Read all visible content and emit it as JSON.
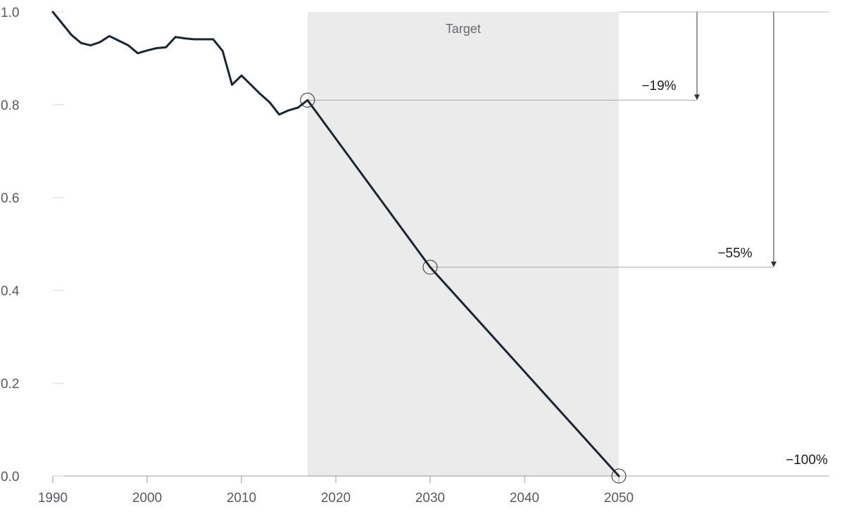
{
  "chart_data": {
    "type": "line",
    "xlim": [
      1990,
      2050
    ],
    "ylim": [
      0,
      1
    ],
    "x_ticks": [
      "1990",
      "2000",
      "2010",
      "2020",
      "2030",
      "2040",
      "2050"
    ],
    "y_ticks": [
      "0.0",
      "0.2",
      "0.4",
      "0.6",
      "0.8",
      "1.0"
    ],
    "grid": false,
    "series": [
      {
        "x": [
          1990,
          1991,
          1992,
          1993,
          1994,
          1995,
          1996,
          1997,
          1998,
          1999,
          2000,
          2001,
          2002,
          2003,
          2004,
          2005,
          2006,
          2007,
          2008,
          2009,
          2010,
          2011,
          2012,
          2013,
          2014,
          2015,
          2016,
          2017,
          2030,
          2050
        ],
        "y": [
          1.0,
          0.975,
          0.95,
          0.933,
          0.928,
          0.935,
          0.948,
          0.938,
          0.928,
          0.911,
          0.917,
          0.922,
          0.924,
          0.946,
          0.943,
          0.941,
          0.941,
          0.941,
          0.916,
          0.843,
          0.863,
          0.843,
          0.823,
          0.805,
          0.779,
          0.788,
          0.794,
          0.81,
          0.45,
          0.0
        ],
        "color": "#1b2533"
      }
    ],
    "target_band": {
      "label": "Target",
      "x_start": 2017,
      "x_end": 2050,
      "color": "#ebebeb"
    },
    "markers": [
      {
        "x": 2017,
        "y": 0.81
      },
      {
        "x": 2030,
        "y": 0.45
      },
      {
        "x": 2050,
        "y": 0.0
      }
    ],
    "annotations": [
      {
        "label": "−19%",
        "from_y": 1.0,
        "to_y": 0.81,
        "at_x": 2017
      },
      {
        "label": "−55%",
        "from_y": 1.0,
        "to_y": 0.45,
        "at_x": 2030
      },
      {
        "label": "−100%",
        "from_y": 1.0,
        "to_y": 0.0,
        "at_x": 2050
      }
    ]
  }
}
